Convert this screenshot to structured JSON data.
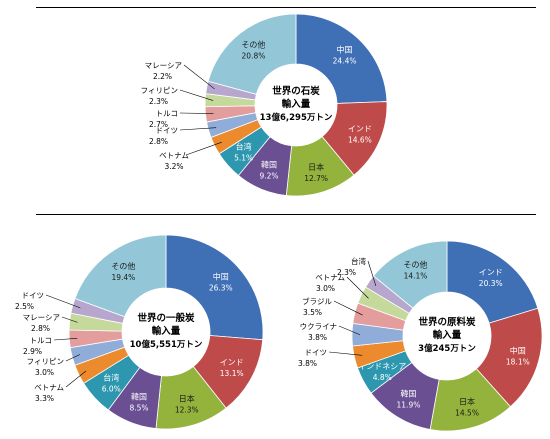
{
  "chart_data": [
    {
      "type": "pie",
      "title": "世界の石炭\n輸入量\n13億6,295万トン",
      "unit": "%",
      "slices": [
        {
          "name": "中国",
          "value": 24.4,
          "value_label": "24.4%",
          "color": "#3f6fb5"
        },
        {
          "name": "インド",
          "value": 14.6,
          "value_label": "14.6%",
          "color": "#bf4a4a"
        },
        {
          "name": "日本",
          "value": 12.7,
          "value_label": "12.7%",
          "color": "#93b33c"
        },
        {
          "name": "韓国",
          "value": 9.2,
          "value_label": "9.2%",
          "color": "#6a4f93"
        },
        {
          "name": "台湾",
          "value": 5.1,
          "value_label": "5.1%",
          "color": "#2e97b0"
        },
        {
          "name": "ベトナム",
          "value": 3.2,
          "value_label": "3.2%",
          "color": "#ec8a2e"
        },
        {
          "name": "ドイツ",
          "value": 2.8,
          "value_label": "2.8%",
          "color": "#8fadd8"
        },
        {
          "name": "トルコ",
          "value": 2.7,
          "value_label": "2.7%",
          "color": "#e39d9c"
        },
        {
          "name": "フィリピン",
          "value": 2.3,
          "value_label": "2.3%",
          "color": "#c5d99c"
        },
        {
          "name": "マレーシア",
          "value": 2.2,
          "value_label": "2.2%",
          "color": "#b7a7cf"
        },
        {
          "name": "その他",
          "value": 20.8,
          "value_label": "20.8%",
          "color": "#93c7d7"
        }
      ]
    },
    {
      "type": "pie",
      "title": "世界の一般炭\n輸入量\n10億5,551万トン",
      "unit": "%",
      "slices": [
        {
          "name": "中国",
          "value": 26.3,
          "value_label": "26.3%",
          "color": "#3f6fb5"
        },
        {
          "name": "インド",
          "value": 13.1,
          "value_label": "13.1%",
          "color": "#bf4a4a"
        },
        {
          "name": "日本",
          "value": 12.3,
          "value_label": "12.3%",
          "color": "#93b33c"
        },
        {
          "name": "韓国",
          "value": 8.5,
          "value_label": "8.5%",
          "color": "#6a4f93"
        },
        {
          "name": "台湾",
          "value": 6.0,
          "value_label": "6.0%",
          "color": "#2e97b0"
        },
        {
          "name": "ベトナム",
          "value": 3.3,
          "value_label": "3.3%",
          "color": "#ec8a2e"
        },
        {
          "name": "フィリピン",
          "value": 3.0,
          "value_label": "3.0%",
          "color": "#8fadd8"
        },
        {
          "name": "トルコ",
          "value": 2.9,
          "value_label": "2.9%",
          "color": "#e39d9c"
        },
        {
          "name": "マレーシア",
          "value": 2.8,
          "value_label": "2.8%",
          "color": "#c5d99c"
        },
        {
          "name": "ドイツ",
          "value": 2.5,
          "value_label": "2.5%",
          "color": "#b7a7cf"
        },
        {
          "name": "その他",
          "value": 19.4,
          "value_label": "19.4%",
          "color": "#93c7d7"
        }
      ]
    },
    {
      "type": "pie",
      "title": "世界の原料炭\n輸入量\n3億245万トン",
      "unit": "%",
      "slices": [
        {
          "name": "インド",
          "value": 20.3,
          "value_label": "20.3%",
          "color": "#3f6fb5"
        },
        {
          "name": "中国",
          "value": 18.1,
          "value_label": "18.1%",
          "color": "#bf4a4a"
        },
        {
          "name": "日本",
          "value": 14.5,
          "value_label": "14.5%",
          "color": "#93b33c"
        },
        {
          "name": "韓国",
          "value": 11.9,
          "value_label": "11.9%",
          "color": "#6a4f93"
        },
        {
          "name": "インドネシア",
          "value": 4.8,
          "value_label": "4.8%",
          "color": "#2e97b0"
        },
        {
          "name": "ドイツ",
          "value": 3.8,
          "value_label": "3.8%",
          "color": "#ec8a2e"
        },
        {
          "name": "ウクライナ",
          "value": 3.8,
          "value_label": "3.8%",
          "color": "#8fadd8"
        },
        {
          "name": "ブラジル",
          "value": 3.5,
          "value_label": "3.5%",
          "color": "#e39d9c"
        },
        {
          "name": "ベトナム",
          "value": 3.0,
          "value_label": "3.0%",
          "color": "#c5d99c"
        },
        {
          "name": "台湾",
          "value": 2.3,
          "value_label": "2.3%",
          "color": "#b7a7cf"
        },
        {
          "name": "その他",
          "value": 14.1,
          "value_label": "14.1%",
          "color": "#93c7d7"
        }
      ]
    }
  ]
}
